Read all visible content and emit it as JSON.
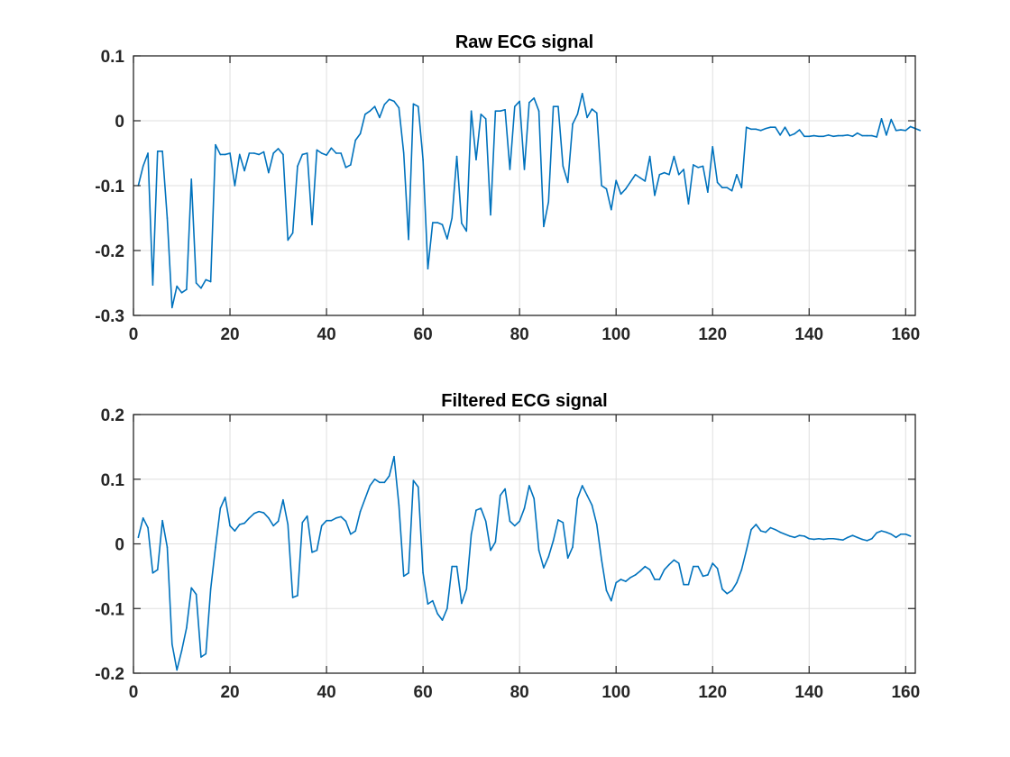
{
  "chart_data": [
    {
      "type": "line",
      "title": "Raw ECG signal",
      "xlabel": "",
      "ylabel": "",
      "xlim": [
        0,
        162
      ],
      "ylim": [
        -0.3,
        0.1
      ],
      "xticks": [
        0,
        20,
        40,
        60,
        80,
        100,
        120,
        140,
        160
      ],
      "yticks": [
        -0.3,
        -0.2,
        -0.1,
        0,
        0.1
      ],
      "ytick_labels": [
        "-0.3",
        "-0.2",
        "-0.1",
        "0",
        "0.1"
      ],
      "grid": true,
      "color": "#0072BD",
      "series": [
        {
          "x_start": 1,
          "values": [
            -0.1,
            -0.07,
            -0.05,
            -0.253,
            -0.047,
            -0.047,
            -0.15,
            -0.288,
            -0.255,
            -0.265,
            -0.26,
            -0.09,
            -0.25,
            -0.258,
            -0.245,
            -0.248,
            -0.037,
            -0.052,
            -0.052,
            -0.05,
            -0.1,
            -0.052,
            -0.077,
            -0.05,
            -0.05,
            -0.052,
            -0.048,
            -0.08,
            -0.05,
            -0.043,
            -0.052,
            -0.184,
            -0.173,
            -0.07,
            -0.052,
            -0.05,
            -0.16,
            -0.045,
            -0.05,
            -0.053,
            -0.042,
            -0.05,
            -0.05,
            -0.072,
            -0.068,
            -0.03,
            -0.02,
            0.01,
            0.015,
            0.022,
            0.005,
            0.025,
            0.033,
            0.03,
            0.02,
            -0.05,
            -0.183,
            0.026,
            0.022,
            -0.06,
            -0.228,
            -0.157,
            -0.157,
            -0.16,
            -0.182,
            -0.15,
            -0.055,
            -0.158,
            -0.17,
            0.015,
            -0.06,
            0.01,
            0.003,
            -0.145,
            0.015,
            0.015,
            0.017,
            -0.075,
            0.022,
            0.03,
            -0.075,
            0.028,
            0.035,
            0.015,
            -0.163,
            -0.125,
            0.022,
            0.022,
            -0.07,
            -0.095,
            -0.005,
            0.01,
            0.042,
            0.005,
            0.018,
            0.012,
            -0.1,
            -0.105,
            -0.137,
            -0.092,
            -0.113,
            -0.105,
            -0.094,
            -0.083,
            -0.088,
            -0.093,
            -0.055,
            -0.115,
            -0.083,
            -0.08,
            -0.083,
            -0.055,
            -0.083,
            -0.075,
            -0.128,
            -0.068,
            -0.072,
            -0.07,
            -0.11,
            -0.04,
            -0.095,
            -0.103,
            -0.103,
            -0.108,
            -0.083,
            -0.103,
            -0.01,
            -0.013,
            -0.013,
            -0.015,
            -0.012,
            -0.01,
            -0.01,
            -0.022,
            -0.01,
            -0.023,
            -0.02,
            -0.014,
            -0.024,
            -0.024,
            -0.023,
            -0.024,
            -0.024,
            -0.022,
            -0.024,
            -0.023,
            -0.023,
            -0.022,
            -0.024,
            -0.019,
            -0.023,
            -0.023,
            -0.023,
            -0.025,
            0.003,
            -0.022,
            0.002,
            -0.015,
            -0.014,
            -0.015,
            -0.009,
            -0.012,
            -0.015
          ]
        }
      ]
    },
    {
      "type": "line",
      "title": "Filtered ECG signal",
      "xlabel": "",
      "ylabel": "",
      "xlim": [
        0,
        162
      ],
      "ylim": [
        -0.2,
        0.2
      ],
      "xticks": [
        0,
        20,
        40,
        60,
        80,
        100,
        120,
        140,
        160
      ],
      "yticks": [
        -0.2,
        -0.1,
        0,
        0.1,
        0.2
      ],
      "ytick_labels": [
        "-0.2",
        "-0.1",
        "0",
        "0.1",
        "0.2"
      ],
      "grid": true,
      "color": "#0072BD",
      "series": [
        {
          "x_start": 1,
          "values": [
            0.01,
            0.04,
            0.025,
            -0.045,
            -0.04,
            0.036,
            -0.005,
            -0.155,
            -0.195,
            -0.165,
            -0.13,
            -0.068,
            -0.078,
            -0.175,
            -0.17,
            -0.07,
            -0.005,
            0.055,
            0.072,
            0.028,
            0.02,
            0.03,
            0.032,
            0.04,
            0.047,
            0.05,
            0.048,
            0.04,
            0.028,
            0.035,
            0.068,
            0.03,
            -0.083,
            -0.08,
            0.033,
            0.043,
            -0.013,
            -0.01,
            0.028,
            0.036,
            0.036,
            0.04,
            0.042,
            0.035,
            0.015,
            0.02,
            0.05,
            0.07,
            0.09,
            0.1,
            0.095,
            0.095,
            0.105,
            0.135,
            0.06,
            -0.05,
            -0.045,
            0.098,
            0.088,
            -0.045,
            -0.093,
            -0.088,
            -0.108,
            -0.118,
            -0.1,
            -0.035,
            -0.035,
            -0.092,
            -0.07,
            0.015,
            0.052,
            0.055,
            0.035,
            -0.01,
            0.003,
            0.075,
            0.085,
            0.035,
            0.028,
            0.035,
            0.055,
            0.09,
            0.07,
            -0.01,
            -0.037,
            -0.02,
            0.005,
            0.037,
            0.033,
            -0.022,
            -0.005,
            0.07,
            0.09,
            0.075,
            0.06,
            0.03,
            -0.025,
            -0.072,
            -0.088,
            -0.06,
            -0.055,
            -0.058,
            -0.052,
            -0.048,
            -0.042,
            -0.035,
            -0.04,
            -0.055,
            -0.055,
            -0.04,
            -0.032,
            -0.025,
            -0.03,
            -0.063,
            -0.063,
            -0.035,
            -0.035,
            -0.05,
            -0.048,
            -0.03,
            -0.038,
            -0.07,
            -0.077,
            -0.072,
            -0.06,
            -0.04,
            -0.01,
            0.022,
            0.03,
            0.02,
            0.018,
            0.025,
            0.022,
            0.018,
            0.015,
            0.012,
            0.01,
            0.013,
            0.012,
            0.008,
            0.007,
            0.008,
            0.007,
            0.008,
            0.008,
            0.007,
            0.006,
            0.01,
            0.013,
            0.01,
            0.007,
            0.005,
            0.008,
            0.017,
            0.02,
            0.018,
            0.015,
            0.01,
            0.015,
            0.015,
            0.012
          ]
        }
      ]
    }
  ]
}
